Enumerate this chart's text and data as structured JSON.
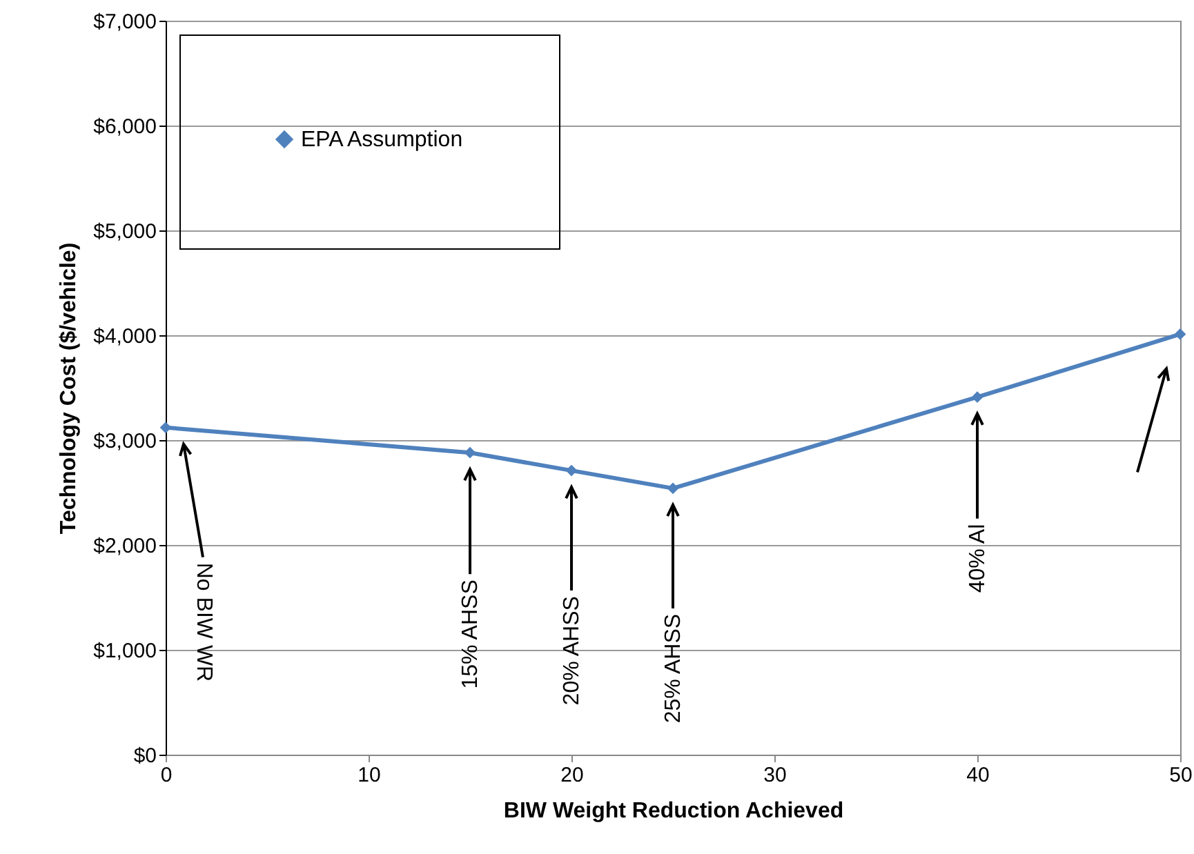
{
  "chart_data": {
    "type": "line",
    "xlabel": "BIW Weight Reduction Achieved",
    "ylabel": "Technology Cost ($/vehicle)",
    "x": [
      0,
      15,
      20,
      25,
      40,
      50
    ],
    "series": [
      {
        "name": "EPA Assumption",
        "color": "#4f81bd",
        "values": [
          3120,
          2880,
          2710,
          2540,
          3410,
          4010
        ]
      }
    ],
    "xlim": [
      0,
      50
    ],
    "xticks": [
      0,
      10,
      20,
      30,
      40,
      50
    ],
    "ylim": [
      0,
      7000
    ],
    "yticks": [
      {
        "value": 0,
        "label": "$0"
      },
      {
        "value": 1000,
        "label": "$1,000"
      },
      {
        "value": 2000,
        "label": "$2,000"
      },
      {
        "value": 3000,
        "label": "$3,000"
      },
      {
        "value": 4000,
        "label": "$4,000"
      },
      {
        "value": 5000,
        "label": "$5,000"
      },
      {
        "value": 6000,
        "label": "$6,000"
      },
      {
        "value": 7000,
        "label": "$7,000"
      }
    ],
    "grid": "y",
    "legend": "top left",
    "marker": "diamond",
    "line_style": "solid",
    "annotations": [
      "No BIW WR",
      "15% AHSS",
      "20% AHSS",
      "25% AHSS",
      "40% Al"
    ]
  }
}
